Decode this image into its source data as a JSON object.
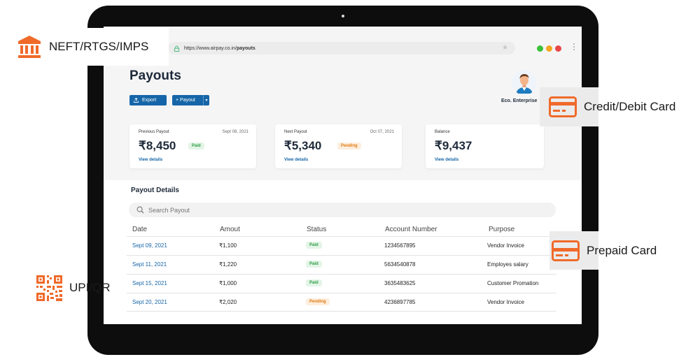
{
  "browser": {
    "url_prefix": "https://www.airpay.co.in/",
    "url_path": "payouts",
    "window_dots": [
      "#3cc13b",
      "#f5a623",
      "#e94848"
    ]
  },
  "page": {
    "title": "Payouts",
    "export_label": "Export",
    "payout_label": "+ Payout",
    "company": "Eco. Enterprise"
  },
  "cards": [
    {
      "label": "Previous Payout",
      "date": "Sept 08, 2021",
      "amount": "₹8,450",
      "badge": "Paid",
      "link": "View details"
    },
    {
      "label": "Next Payout",
      "date": "Oct 07, 2021",
      "amount": "₹5,340",
      "badge": "Pending",
      "link": "View details"
    },
    {
      "label": "Balance",
      "amount": "₹9,437",
      "link": "View details"
    }
  ],
  "details": {
    "title": "Payout Details",
    "search_placeholder": "Search Payout",
    "columns": [
      "Date",
      "Amout",
      "Status",
      "Account Number",
      "Purpose"
    ],
    "rows": [
      {
        "date": "Sept 09, 2021",
        "amount": "₹1,100",
        "status": "Paid",
        "account": "1234567895",
        "purpose": "Vendor Invoice"
      },
      {
        "date": "Sept 11, 2021",
        "amount": "₹1,220",
        "status": "Paid",
        "account": "5634540878",
        "purpose": "Employes salary"
      },
      {
        "date": "Sept 15, 2021",
        "amount": "₹1,000",
        "status": "Paid",
        "account": "3635483625",
        "purpose": "Customer Promation"
      },
      {
        "date": "Sept 20, 2021",
        "amount": "₹2,020",
        "status": "Pending",
        "account": "4236897785",
        "purpose": "Vendor Invoice"
      }
    ]
  },
  "callouts": {
    "neft": "NEFT/RTGS/IMPS",
    "credit": "Credit/Debit Card",
    "prepaid": "Prepaid Card",
    "upi": "UPI/QR"
  },
  "colors": {
    "accent": "#1565a8",
    "callout_icon": "#f06a2a",
    "paid": "#2e9c47",
    "pending": "#e07b14"
  }
}
